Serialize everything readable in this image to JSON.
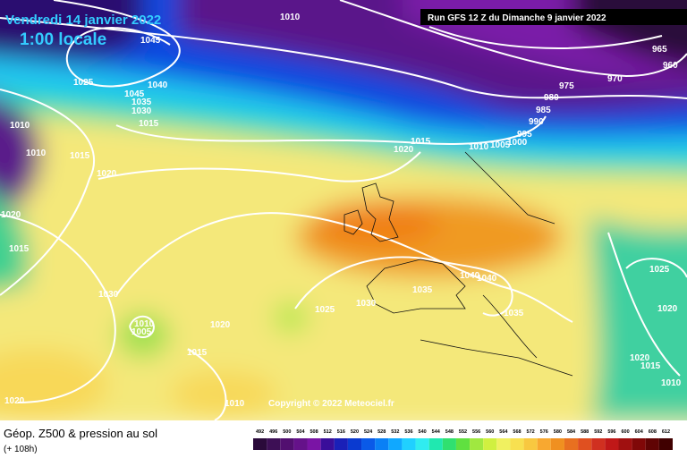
{
  "header": {
    "date": "Vendredi 14 janvier 2022",
    "time": "1:00 locale",
    "run": "Run GFS 12 Z du Dimanche 9 janvier 2022"
  },
  "copyright": "Copyright © 2022 Meteociel.fr",
  "footer": {
    "title": "Géop. Z500 & pression au sol",
    "lead": "(+ 108h)"
  },
  "legend": {
    "ticks": [
      492,
      496,
      500,
      504,
      508,
      512,
      516,
      520,
      524,
      528,
      532,
      536,
      540,
      544,
      548,
      552,
      556,
      560,
      564,
      568,
      572,
      576,
      580,
      584,
      588,
      592,
      596,
      600,
      604,
      608,
      612
    ],
    "colors": [
      "#2a0a3a",
      "#3d0f55",
      "#520f70",
      "#65128a",
      "#7a14a5",
      "#3a0e9a",
      "#1a20b8",
      "#0a3ad0",
      "#0a5ae8",
      "#0a80f5",
      "#10a8ff",
      "#20d0ff",
      "#30ecf0",
      "#20e8b0",
      "#30e070",
      "#60e040",
      "#a0e840",
      "#d0f040",
      "#f0f060",
      "#f8e050",
      "#f8c840",
      "#f8a830",
      "#f09020",
      "#e87020",
      "#e05020",
      "#d03020",
      "#c01818",
      "#a01010",
      "#800808",
      "#600404",
      "#400000"
    ]
  },
  "isobars": [
    "1010",
    "1045",
    "1040",
    "1045",
    "1035",
    "1030",
    "1015",
    "1025",
    "1010",
    "1010",
    "1015",
    "1020",
    "1020",
    "1015",
    "1030",
    "1010",
    "1005",
    "1020",
    "1015",
    "1010",
    "1020",
    "1025",
    "1030",
    "1035",
    "1040",
    "1040",
    "1035",
    "1020",
    "1015",
    "1010",
    "1005",
    "1000",
    "995",
    "990",
    "985",
    "980",
    "975",
    "970",
    "965",
    "960",
    "1025",
    "1020",
    "1020",
    "1015",
    "1010"
  ]
}
